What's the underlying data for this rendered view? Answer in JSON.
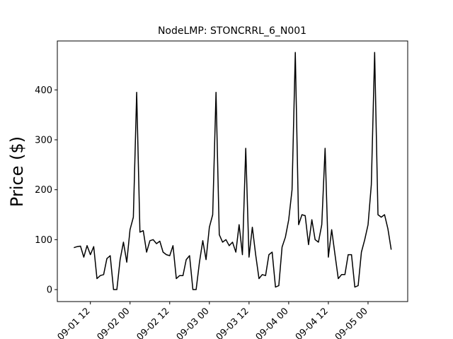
{
  "chart_data": {
    "type": "line",
    "title": "NodeLMP: STONCRRL_6_N001",
    "y_label": "Price ($)",
    "color": "#000000",
    "x": [
      "09-01 07",
      "09-01 08",
      "09-01 09",
      "09-01 10",
      "09-01 11",
      "09-01 12",
      "09-01 13",
      "09-01 14",
      "09-01 15",
      "09-01 16",
      "09-01 17",
      "09-01 18",
      "09-01 19",
      "09-01 20",
      "09-01 21",
      "09-01 22",
      "09-01 23",
      "09-02 00",
      "09-02 01",
      "09-02 02",
      "09-02 03",
      "09-02 04",
      "09-02 05",
      "09-02 06",
      "09-02 07",
      "09-02 08",
      "09-02 09",
      "09-02 10",
      "09-02 11",
      "09-02 12",
      "09-02 13",
      "09-02 14",
      "09-02 15",
      "09-02 16",
      "09-02 17",
      "09-02 18",
      "09-02 19",
      "09-02 20",
      "09-02 21",
      "09-02 22",
      "09-02 23",
      "09-03 00",
      "09-03 01",
      "09-03 02",
      "09-03 03",
      "09-03 04",
      "09-03 05",
      "09-03 06",
      "09-03 07",
      "09-03 08",
      "09-03 09",
      "09-03 10",
      "09-03 11",
      "09-03 12",
      "09-03 13",
      "09-03 14",
      "09-03 15",
      "09-03 16",
      "09-03 17",
      "09-03 18",
      "09-03 19",
      "09-03 20",
      "09-03 21",
      "09-03 22",
      "09-03 23",
      "09-04 00",
      "09-04 01",
      "09-04 02",
      "09-04 03",
      "09-04 04",
      "09-04 05",
      "09-04 06",
      "09-04 07",
      "09-04 08",
      "09-04 09",
      "09-04 10",
      "09-04 11",
      "09-04 12",
      "09-04 13",
      "09-04 14",
      "09-04 15",
      "09-04 16",
      "09-04 17",
      "09-04 18",
      "09-04 19",
      "09-04 20",
      "09-04 21",
      "09-04 22",
      "09-04 23",
      "09-05 00",
      "09-05 01",
      "09-05 02",
      "09-05 03",
      "09-05 04",
      "09-05 05",
      "09-05 06",
      "09-05 07"
    ],
    "values": [
      84,
      86,
      87,
      65,
      88,
      70,
      86,
      22,
      28,
      30,
      62,
      68,
      0,
      0,
      60,
      95,
      55,
      120,
      145,
      395,
      115,
      118,
      75,
      98,
      100,
      92,
      97,
      75,
      70,
      68,
      88,
      22,
      28,
      28,
      60,
      68,
      0,
      0,
      55,
      98,
      60,
      125,
      150,
      395,
      110,
      95,
      100,
      88,
      95,
      75,
      130,
      70,
      283,
      65,
      125,
      70,
      22,
      30,
      28,
      70,
      75,
      5,
      8,
      85,
      105,
      140,
      200,
      475,
      130,
      150,
      148,
      90,
      140,
      100,
      95,
      130,
      283,
      65,
      120,
      70,
      22,
      30,
      30,
      70,
      70,
      5,
      8,
      75,
      100,
      130,
      210,
      475,
      150,
      145,
      150,
      122,
      80
    ],
    "xlim": [
      "09-01 02",
      "09-05 12"
    ],
    "xticks": [
      "09-01 12",
      "09-02 00",
      "09-02 12",
      "09-03 00",
      "09-03 12",
      "09-04 00",
      "09-04 12",
      "09-05 00"
    ],
    "ylim": [
      -24,
      498
    ],
    "yticks": [
      0,
      100,
      200,
      300,
      400
    ]
  }
}
